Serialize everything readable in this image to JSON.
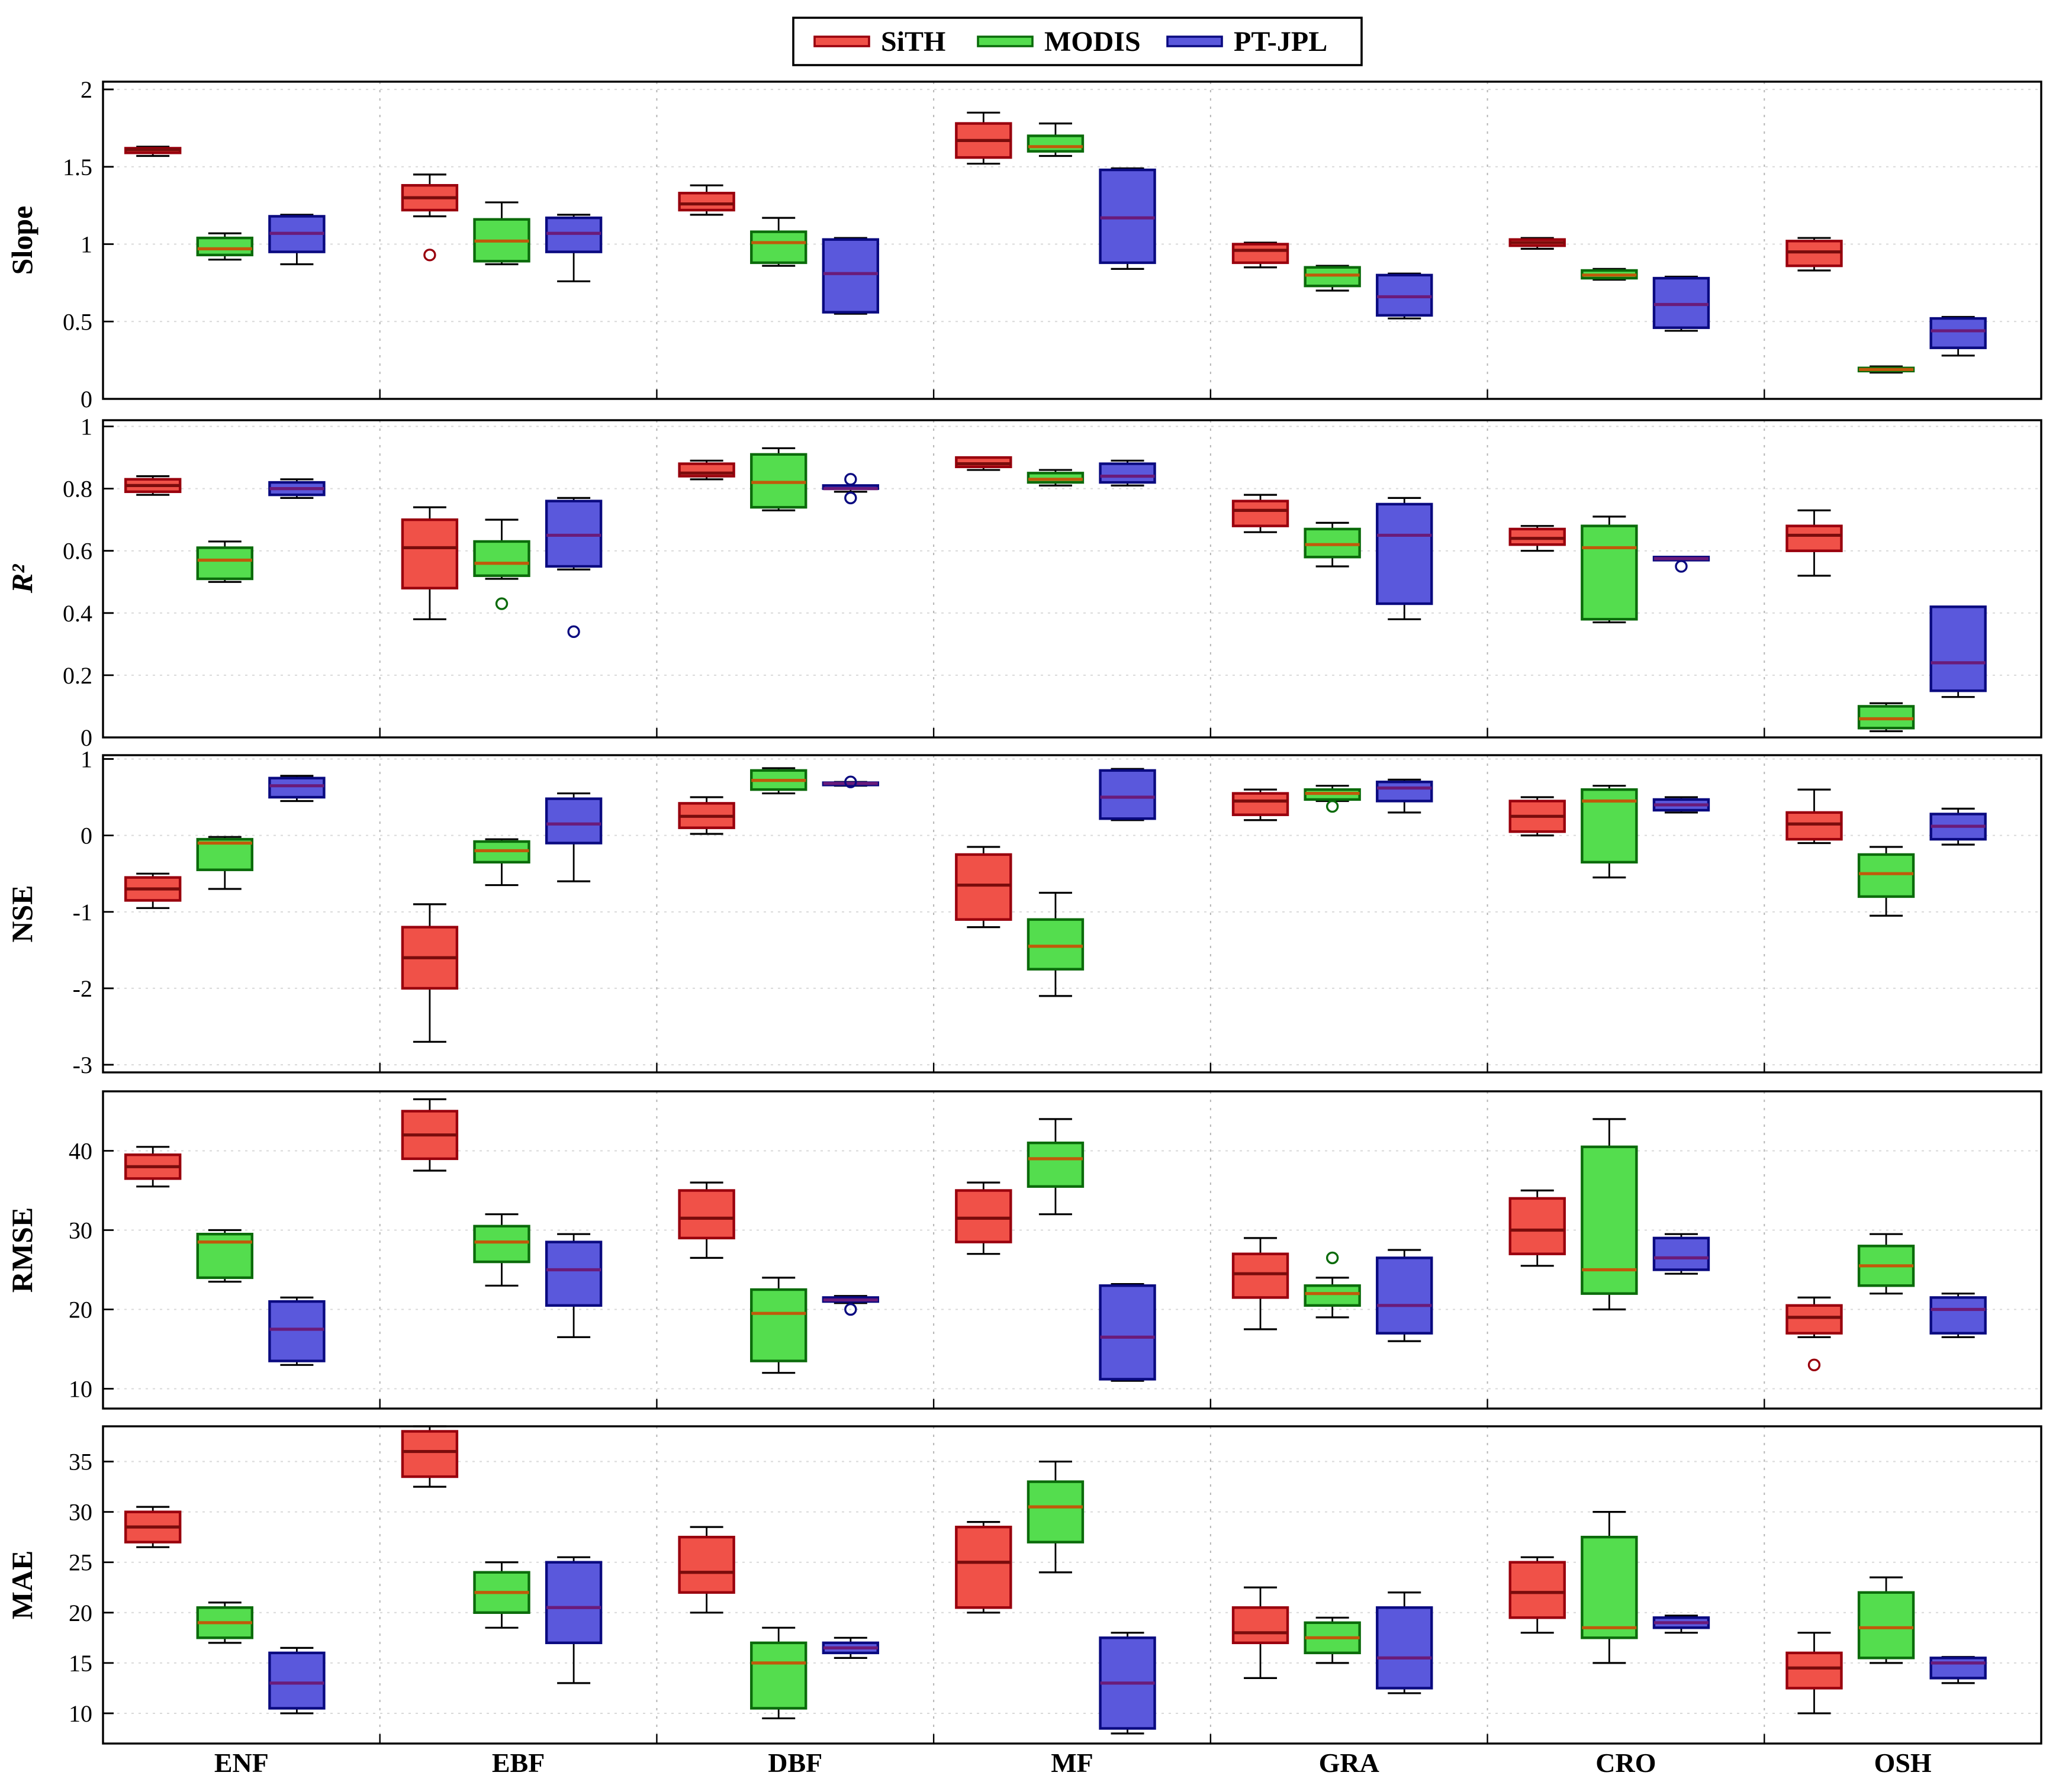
{
  "figure": {
    "legend": {
      "items": [
        {
          "label": "SiTH"
        },
        {
          "label": "MODIS"
        },
        {
          "label": "PT-JPL"
        }
      ]
    }
  },
  "chart_data": {
    "type": "boxplot",
    "categories": [
      "ENF",
      "EBF",
      "DBF",
      "MF",
      "GRA",
      "CRO",
      "OSH"
    ],
    "series": [
      "SiTH",
      "MODIS",
      "PT-JPL"
    ],
    "series_styles": [
      {
        "name": "SiTH",
        "fill": "#f05148",
        "edge": "#99000d",
        "median": "#7a0c0c"
      },
      {
        "name": "MODIS",
        "fill": "#54dd4e",
        "edge": "#0b6b0b",
        "median": "#c05a0a"
      },
      {
        "name": "PT-JPL",
        "fill": "#5a58dc",
        "edge": "#0a0a80",
        "median": "#6a1b7a"
      }
    ],
    "box_format": "[whisker_low, q1, median, q3, whisker_high, outliers[]]",
    "panels": [
      {
        "id": "slope",
        "label": "Slope",
        "italic": false,
        "ylim": [
          0,
          2.05
        ],
        "yticks": [
          0,
          0.5,
          1,
          1.5,
          2
        ],
        "yticklabels": [
          "0",
          "0.5",
          "1",
          "1.5",
          "2"
        ],
        "data": [
          [
            [
              1.57,
              1.59,
              1.61,
              1.62,
              1.63,
              []
            ],
            [
              0.9,
              0.93,
              0.97,
              1.04,
              1.07,
              []
            ],
            [
              0.87,
              0.95,
              1.07,
              1.18,
              1.19,
              []
            ]
          ],
          [
            [
              1.18,
              1.22,
              1.3,
              1.38,
              1.45,
              [
                0.93
              ]
            ],
            [
              0.87,
              0.89,
              1.02,
              1.16,
              1.27,
              []
            ],
            [
              0.76,
              0.95,
              1.07,
              1.17,
              1.19,
              []
            ]
          ],
          [
            [
              1.19,
              1.22,
              1.26,
              1.33,
              1.38,
              []
            ],
            [
              0.86,
              0.88,
              1.01,
              1.08,
              1.17,
              []
            ],
            [
              0.55,
              0.56,
              0.81,
              1.03,
              1.04,
              []
            ]
          ],
          [
            [
              1.52,
              1.56,
              1.67,
              1.78,
              1.85,
              []
            ],
            [
              1.57,
              1.6,
              1.63,
              1.7,
              1.78,
              []
            ],
            [
              0.84,
              0.88,
              1.17,
              1.48,
              1.49,
              []
            ]
          ],
          [
            [
              0.85,
              0.88,
              0.96,
              1.0,
              1.01,
              []
            ],
            [
              0.7,
              0.73,
              0.8,
              0.85,
              0.86,
              []
            ],
            [
              0.52,
              0.54,
              0.66,
              0.8,
              0.81,
              []
            ]
          ],
          [
            [
              0.97,
              0.99,
              1.01,
              1.03,
              1.04,
              []
            ],
            [
              0.77,
              0.78,
              0.8,
              0.83,
              0.84,
              []
            ],
            [
              0.44,
              0.46,
              0.61,
              0.78,
              0.79,
              []
            ]
          ],
          [
            [
              0.83,
              0.86,
              0.95,
              1.02,
              1.04,
              []
            ],
            [
              0.17,
              0.18,
              0.19,
              0.2,
              0.21,
              []
            ],
            [
              0.28,
              0.33,
              0.44,
              0.52,
              0.53,
              []
            ]
          ]
        ]
      },
      {
        "id": "r2",
        "label": "R²",
        "italic": true,
        "ylim": [
          0,
          1.02
        ],
        "yticks": [
          0,
          0.2,
          0.4,
          0.6,
          0.8,
          1
        ],
        "yticklabels": [
          "0",
          "0.2",
          "0.4",
          "0.6",
          "0.8",
          "1"
        ],
        "data": [
          [
            [
              0.78,
              0.79,
              0.81,
              0.83,
              0.84,
              []
            ],
            [
              0.5,
              0.51,
              0.57,
              0.61,
              0.63,
              []
            ],
            [
              0.77,
              0.78,
              0.8,
              0.82,
              0.83,
              []
            ]
          ],
          [
            [
              0.38,
              0.48,
              0.61,
              0.7,
              0.74,
              []
            ],
            [
              0.51,
              0.52,
              0.56,
              0.63,
              0.7,
              [
                0.43
              ]
            ],
            [
              0.54,
              0.55,
              0.65,
              0.76,
              0.77,
              [
                0.34
              ]
            ]
          ],
          [
            [
              0.83,
              0.84,
              0.85,
              0.88,
              0.89,
              []
            ],
            [
              0.73,
              0.74,
              0.82,
              0.91,
              0.93,
              []
            ],
            [
              0.79,
              0.8,
              0.8,
              0.81,
              0.81,
              [
                0.83,
                0.77
              ]
            ]
          ],
          [
            [
              0.86,
              0.87,
              0.88,
              0.9,
              0.9,
              []
            ],
            [
              0.81,
              0.82,
              0.83,
              0.85,
              0.86,
              []
            ],
            [
              0.81,
              0.82,
              0.84,
              0.88,
              0.89,
              []
            ]
          ],
          [
            [
              0.66,
              0.68,
              0.73,
              0.76,
              0.78,
              []
            ],
            [
              0.55,
              0.58,
              0.62,
              0.67,
              0.69,
              []
            ],
            [
              0.38,
              0.43,
              0.65,
              0.75,
              0.77,
              []
            ]
          ],
          [
            [
              0.6,
              0.62,
              0.64,
              0.67,
              0.68,
              []
            ],
            [
              0.37,
              0.38,
              0.61,
              0.68,
              0.71,
              []
            ],
            [
              0.57,
              0.57,
              0.575,
              0.58,
              0.58,
              [
                0.55
              ]
            ]
          ],
          [
            [
              0.52,
              0.6,
              0.65,
              0.68,
              0.73,
              []
            ],
            [
              0.02,
              0.03,
              0.06,
              0.1,
              0.11,
              []
            ],
            [
              0.13,
              0.15,
              0.24,
              0.42,
              0.42,
              []
            ]
          ]
        ]
      },
      {
        "id": "nse",
        "label": "NSE",
        "italic": false,
        "ylim": [
          -3.1,
          1.05
        ],
        "yticks": [
          -3,
          -2,
          -1,
          0,
          1
        ],
        "yticklabels": [
          "-3",
          "-2",
          "-1",
          "0",
          "1"
        ],
        "data": [
          [
            [
              -0.95,
              -0.85,
              -0.7,
              -0.55,
              -0.5,
              []
            ],
            [
              -0.7,
              -0.45,
              -0.1,
              -0.05,
              -0.02,
              []
            ],
            [
              0.45,
              0.5,
              0.65,
              0.75,
              0.78,
              []
            ]
          ],
          [
            [
              -2.7,
              -2.0,
              -1.6,
              -1.2,
              -0.9,
              []
            ],
            [
              -0.65,
              -0.35,
              -0.2,
              -0.08,
              -0.05,
              []
            ],
            [
              -0.6,
              -0.1,
              0.15,
              0.48,
              0.55,
              []
            ]
          ],
          [
            [
              0.02,
              0.1,
              0.25,
              0.42,
              0.5,
              []
            ],
            [
              0.55,
              0.6,
              0.72,
              0.85,
              0.88,
              []
            ],
            [
              0.65,
              0.66,
              0.68,
              0.69,
              0.7,
              [
                0.7
              ]
            ]
          ],
          [
            [
              -1.2,
              -1.1,
              -0.65,
              -0.25,
              -0.15,
              []
            ],
            [
              -2.1,
              -1.75,
              -1.45,
              -1.1,
              -0.75,
              []
            ],
            [
              0.2,
              0.22,
              0.5,
              0.85,
              0.87,
              []
            ]
          ],
          [
            [
              0.2,
              0.27,
              0.45,
              0.55,
              0.6,
              []
            ],
            [
              0.45,
              0.47,
              0.55,
              0.6,
              0.65,
              [
                0.38
              ]
            ],
            [
              0.3,
              0.45,
              0.62,
              0.7,
              0.73,
              []
            ]
          ],
          [
            [
              0.0,
              0.05,
              0.25,
              0.45,
              0.5,
              []
            ],
            [
              -0.55,
              -0.35,
              0.45,
              0.6,
              0.65,
              []
            ],
            [
              0.3,
              0.33,
              0.4,
              0.47,
              0.5,
              []
            ]
          ],
          [
            [
              -0.1,
              -0.05,
              0.15,
              0.3,
              0.6,
              []
            ],
            [
              -1.05,
              -0.8,
              -0.5,
              -0.25,
              -0.15,
              []
            ],
            [
              -0.12,
              -0.05,
              0.12,
              0.28,
              0.35,
              []
            ]
          ]
        ]
      },
      {
        "id": "rmse",
        "label": "RMSE",
        "italic": false,
        "ylim": [
          7.5,
          47.5
        ],
        "yticks": [
          10,
          20,
          30,
          40
        ],
        "yticklabels": [
          "10",
          "20",
          "30",
          "40"
        ],
        "data": [
          [
            [
              35.5,
              36.5,
              38,
              39.5,
              40.5,
              []
            ],
            [
              23.5,
              24,
              28.5,
              29.5,
              30,
              []
            ],
            [
              13,
              13.5,
              17.5,
              21,
              21.5,
              []
            ]
          ],
          [
            [
              37.5,
              39,
              42,
              45,
              46.5,
              []
            ],
            [
              23,
              26,
              28.5,
              30.5,
              32,
              []
            ],
            [
              16.5,
              20.5,
              25,
              28.5,
              29.5,
              []
            ]
          ],
          [
            [
              26.5,
              29,
              31.5,
              35,
              36,
              []
            ],
            [
              12,
              13.5,
              19.5,
              22.5,
              24,
              []
            ],
            [
              20.8,
              21,
              21.2,
              21.5,
              21.7,
              [
                20
              ]
            ]
          ],
          [
            [
              27,
              28.5,
              31.5,
              35,
              36,
              []
            ],
            [
              32,
              35.5,
              39,
              41,
              44,
              []
            ],
            [
              11,
              11.2,
              16.5,
              23,
              23.2,
              []
            ]
          ],
          [
            [
              17.5,
              21.5,
              24.5,
              27,
              29,
              []
            ],
            [
              19,
              20.5,
              22,
              23,
              24,
              [
                26.5
              ]
            ],
            [
              16,
              17,
              20.5,
              26.5,
              27.5,
              []
            ]
          ],
          [
            [
              25.5,
              27,
              30,
              34,
              35,
              []
            ],
            [
              20,
              22,
              25,
              40.5,
              44,
              []
            ],
            [
              24.5,
              25,
              26.5,
              29,
              29.5,
              []
            ]
          ],
          [
            [
              16.5,
              17,
              19,
              20.5,
              21.5,
              [
                13
              ]
            ],
            [
              22,
              23,
              25.5,
              28,
              29.5,
              []
            ],
            [
              16.5,
              17,
              20,
              21.5,
              22,
              []
            ]
          ]
        ]
      },
      {
        "id": "mae",
        "label": "MAE",
        "italic": false,
        "ylim": [
          7,
          38.5
        ],
        "yticks": [
          10,
          15,
          20,
          25,
          30,
          35
        ],
        "yticklabels": [
          "10",
          "15",
          "20",
          "25",
          "30",
          "35"
        ],
        "data": [
          [
            [
              26.5,
              27,
              28.5,
              30,
              30.5,
              []
            ],
            [
              17,
              17.5,
              19,
              20.5,
              21,
              []
            ],
            [
              10,
              10.5,
              13,
              16,
              16.5,
              []
            ]
          ],
          [
            [
              32.5,
              33.5,
              36,
              38,
              38.5,
              []
            ],
            [
              18.5,
              20,
              22,
              24,
              25,
              []
            ],
            [
              13,
              17,
              20.5,
              25,
              25.5,
              []
            ]
          ],
          [
            [
              20,
              22,
              24,
              27.5,
              28.5,
              []
            ],
            [
              9.5,
              10.5,
              15,
              17,
              18.5,
              []
            ],
            [
              15.5,
              16,
              16.5,
              17,
              17.5,
              []
            ]
          ],
          [
            [
              20,
              20.5,
              25,
              28.5,
              29,
              []
            ],
            [
              24,
              27,
              30.5,
              33,
              35,
              []
            ],
            [
              8,
              8.5,
              13,
              17.5,
              18,
              []
            ]
          ],
          [
            [
              13.5,
              17,
              18,
              20.5,
              22.5,
              []
            ],
            [
              15,
              16,
              17.5,
              19,
              19.5,
              []
            ],
            [
              12,
              12.5,
              15.5,
              20.5,
              22,
              []
            ]
          ],
          [
            [
              18,
              19.5,
              22,
              25,
              25.5,
              []
            ],
            [
              15,
              17.5,
              18.5,
              27.5,
              30,
              []
            ],
            [
              18,
              18.5,
              19,
              19.5,
              19.7,
              []
            ]
          ],
          [
            [
              10,
              12.5,
              14.5,
              16,
              18,
              []
            ],
            [
              15,
              15.5,
              18.5,
              22,
              23.5,
              []
            ],
            [
              13,
              13.5,
              15,
              15.5,
              15.6,
              []
            ]
          ]
        ]
      }
    ]
  }
}
